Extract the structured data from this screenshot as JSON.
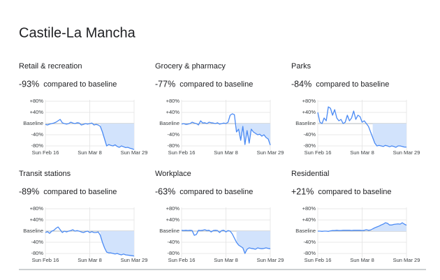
{
  "header": {
    "title": "Castile-La Mancha"
  },
  "chart_data": [
    {
      "type": "line",
      "title": "Retail & recreation",
      "headline": "-93%",
      "subtitle": "compared to baseline",
      "categories": [
        "Sun Feb 16",
        null,
        null,
        null,
        null,
        null,
        null,
        null,
        null,
        null,
        null,
        null,
        null,
        null,
        null,
        null,
        null,
        null,
        null,
        null,
        null,
        "Sun Mar 8",
        null,
        null,
        null,
        null,
        null,
        null,
        null,
        null,
        null,
        null,
        null,
        null,
        null,
        null,
        null,
        null,
        null,
        null,
        null,
        null,
        "Sun Mar 29"
      ],
      "values": [
        -3,
        -5,
        -2,
        0,
        2,
        5,
        10,
        15,
        3,
        0,
        -2,
        0,
        5,
        2,
        0,
        3,
        2,
        -5,
        -3,
        0,
        -2,
        0,
        2,
        -5,
        -3,
        -5,
        -10,
        -30,
        -55,
        -80,
        -75,
        -78,
        -80,
        -76,
        -82,
        -85,
        -80,
        -83,
        -86,
        -85,
        -88,
        -90,
        -93
      ],
      "color": "#4a8af4",
      "ylim": [
        -95,
        85
      ],
      "yticks": [
        {
          "value": 80,
          "label": "+80%"
        },
        {
          "value": 40,
          "label": "+40%"
        },
        {
          "value": 0,
          "label": "Baseline"
        },
        {
          "value": -40,
          "label": "-40%"
        },
        {
          "value": -80,
          "label": "-80%"
        }
      ],
      "grid": true
    },
    {
      "type": "line",
      "title": "Grocery & pharmacy",
      "headline": "-77%",
      "subtitle": "compared to baseline",
      "categories": [
        "Sun Feb 16",
        null,
        null,
        null,
        null,
        null,
        null,
        null,
        null,
        null,
        null,
        null,
        null,
        null,
        null,
        null,
        null,
        null,
        null,
        null,
        null,
        "Sun Mar 8",
        null,
        null,
        null,
        null,
        null,
        null,
        null,
        null,
        null,
        null,
        null,
        null,
        null,
        null,
        null,
        null,
        null,
        null,
        null,
        null,
        "Sun Mar 29"
      ],
      "values": [
        -2,
        0,
        -3,
        -2,
        0,
        5,
        2,
        0,
        -5,
        10,
        2,
        3,
        0,
        5,
        3,
        2,
        0,
        3,
        -2,
        0,
        2,
        0,
        5,
        30,
        35,
        32,
        -30,
        -20,
        -60,
        -10,
        -75,
        -25,
        -70,
        -20,
        -30,
        -35,
        -40,
        -38,
        -45,
        -40,
        -50,
        -55,
        -77
      ],
      "color": "#4a8af4",
      "ylim": [
        -95,
        85
      ],
      "yticks": [
        {
          "value": 80,
          "label": "+80%"
        },
        {
          "value": 40,
          "label": "+40%"
        },
        {
          "value": 0,
          "label": "Baseline"
        },
        {
          "value": -40,
          "label": "-40%"
        },
        {
          "value": -80,
          "label": "-80%"
        }
      ],
      "grid": true
    },
    {
      "type": "line",
      "title": "Parks",
      "headline": "-84%",
      "subtitle": "compared to baseline",
      "categories": [
        "Sun Feb 16",
        null,
        null,
        null,
        null,
        null,
        null,
        null,
        null,
        null,
        null,
        null,
        null,
        null,
        null,
        null,
        null,
        null,
        null,
        null,
        null,
        "Sun Mar 8",
        null,
        null,
        null,
        null,
        null,
        null,
        null,
        null,
        null,
        null,
        null,
        null,
        null,
        null,
        null,
        null,
        null,
        null,
        null,
        null,
        "Sun Mar 29"
      ],
      "values": [
        40,
        5,
        0,
        20,
        10,
        60,
        55,
        30,
        50,
        20,
        10,
        15,
        0,
        5,
        30,
        10,
        20,
        45,
        15,
        30,
        25,
        5,
        10,
        0,
        -10,
        -30,
        -50,
        -70,
        -80,
        -78,
        -80,
        -82,
        -78,
        -80,
        -83,
        -80,
        -82,
        -85,
        -80,
        -80,
        -82,
        -84,
        -84
      ],
      "color": "#4a8af4",
      "ylim": [
        -95,
        85
      ],
      "yticks": [
        {
          "value": 80,
          "label": "+80%"
        },
        {
          "value": 40,
          "label": "+40%"
        },
        {
          "value": 0,
          "label": "Baseline"
        },
        {
          "value": -40,
          "label": "-40%"
        },
        {
          "value": -80,
          "label": "-80%"
        }
      ],
      "grid": true
    },
    {
      "type": "line",
      "title": "Transit stations",
      "headline": "-89%",
      "subtitle": "compared to baseline",
      "categories": [
        "Sun Feb 16",
        null,
        null,
        null,
        null,
        null,
        null,
        null,
        null,
        null,
        null,
        null,
        null,
        null,
        null,
        null,
        null,
        null,
        null,
        null,
        null,
        "Sun Mar 8",
        null,
        null,
        null,
        null,
        null,
        null,
        null,
        null,
        null,
        null,
        null,
        null,
        null,
        null,
        null,
        null,
        null,
        null,
        null,
        null,
        "Sun Mar 29"
      ],
      "values": [
        -5,
        -2,
        -8,
        0,
        3,
        10,
        15,
        5,
        -5,
        0,
        -3,
        0,
        2,
        5,
        0,
        2,
        0,
        -3,
        -5,
        -2,
        0,
        -5,
        -2,
        -5,
        -5,
        -3,
        -15,
        -40,
        -60,
        -75,
        -78,
        -78,
        -80,
        -82,
        -80,
        -83,
        -85,
        -82,
        -85,
        -86,
        -87,
        -88,
        -89
      ],
      "color": "#4a8af4",
      "ylim": [
        -95,
        85
      ],
      "yticks": [
        {
          "value": 80,
          "label": "+80%"
        },
        {
          "value": 40,
          "label": "+40%"
        },
        {
          "value": 0,
          "label": "Baseline"
        },
        {
          "value": -40,
          "label": "-40%"
        },
        {
          "value": -80,
          "label": "-80%"
        }
      ],
      "grid": true
    },
    {
      "type": "line",
      "title": "Workplace",
      "headline": "-63%",
      "subtitle": "compared to baseline",
      "categories": [
        "Sun Feb 16",
        null,
        null,
        null,
        null,
        null,
        null,
        null,
        null,
        null,
        null,
        null,
        null,
        null,
        null,
        null,
        null,
        null,
        null,
        null,
        null,
        "Sun Mar 8",
        null,
        null,
        null,
        null,
        null,
        null,
        null,
        null,
        null,
        null,
        null,
        null,
        null,
        null,
        null,
        null,
        null,
        null,
        null,
        null,
        "Sun Mar 29"
      ],
      "values": [
        3,
        2,
        3,
        2,
        3,
        2,
        -15,
        -12,
        3,
        2,
        3,
        5,
        2,
        3,
        -3,
        2,
        3,
        2,
        -5,
        2,
        3,
        -3,
        2,
        0,
        -10,
        -25,
        -40,
        -50,
        -55,
        -60,
        -80,
        -65,
        -60,
        -62,
        -63,
        -65,
        -60,
        -62,
        -63,
        -62,
        -60,
        -62,
        -63
      ],
      "color": "#4a8af4",
      "ylim": [
        -95,
        85
      ],
      "yticks": [
        {
          "value": 80,
          "label": "+80%"
        },
        {
          "value": 40,
          "label": "+40%"
        },
        {
          "value": 0,
          "label": "Baseline"
        },
        {
          "value": -40,
          "label": "-40%"
        },
        {
          "value": -80,
          "label": "-80%"
        }
      ],
      "grid": true
    },
    {
      "type": "line",
      "title": "Residential",
      "headline": "+21%",
      "subtitle": "compared to baseline",
      "categories": [
        "Sun Feb 16",
        null,
        null,
        null,
        null,
        null,
        null,
        null,
        null,
        null,
        null,
        null,
        null,
        null,
        null,
        null,
        null,
        null,
        null,
        null,
        null,
        "Sun Mar 8",
        null,
        null,
        null,
        null,
        null,
        null,
        null,
        null,
        null,
        null,
        null,
        null,
        null,
        null,
        null,
        null,
        null,
        null,
        null,
        null,
        "Sun Mar 29"
      ],
      "values": [
        0,
        0,
        -1,
        0,
        0,
        -1,
        1,
        2,
        2,
        3,
        2,
        2,
        3,
        3,
        3,
        3,
        2,
        3,
        3,
        3,
        3,
        2,
        3,
        5,
        3,
        4,
        8,
        12,
        15,
        18,
        22,
        25,
        30,
        28,
        22,
        22,
        24,
        25,
        26,
        25,
        30,
        25,
        21
      ],
      "color": "#4a8af4",
      "ylim": [
        -95,
        85
      ],
      "yticks": [
        {
          "value": 80,
          "label": "+80%"
        },
        {
          "value": 40,
          "label": "+40%"
        },
        {
          "value": 0,
          "label": "Baseline"
        },
        {
          "value": -40,
          "label": "-40%"
        },
        {
          "value": -80,
          "label": "-80%"
        }
      ],
      "grid": true
    }
  ]
}
